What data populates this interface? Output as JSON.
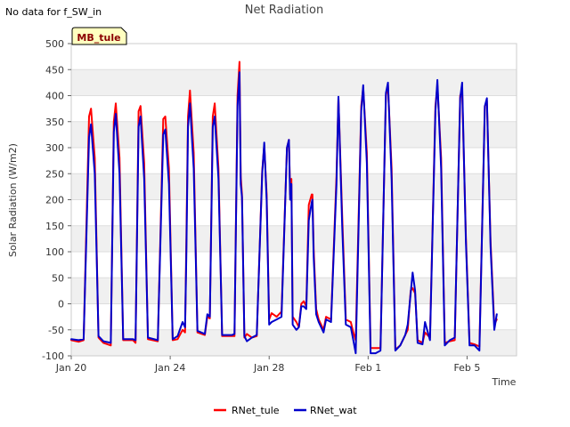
{
  "no_data_text": "No data for f_SW_in",
  "site_badge": "MB_tule",
  "colors": {
    "RNet_tule": "#ff0000",
    "RNet_wat": "#0000cc",
    "band": "#f0f0f0",
    "badge_bg": "#ffffc0"
  },
  "chart_data": {
    "type": "line",
    "title": "Net Radiation",
    "xlabel": "Time",
    "ylabel": "Solar Radiation (W/m2)",
    "ylim": [
      -100,
      500
    ],
    "yticks": [
      -100,
      -50,
      0,
      50,
      100,
      150,
      200,
      250,
      300,
      350,
      400,
      450,
      500
    ],
    "xlim": [
      0,
      18
    ],
    "xticks": [
      {
        "day": 0,
        "label": "Jan 20"
      },
      {
        "day": 4,
        "label": "Jan 24"
      },
      {
        "day": 8,
        "label": "Jan 28"
      },
      {
        "day": 12,
        "label": "Feb 1"
      },
      {
        "day": 16,
        "label": "Feb 5"
      }
    ],
    "series": [
      {
        "name": "RNet_tule",
        "points": [
          [
            0.0,
            -70
          ],
          [
            0.3,
            -73
          ],
          [
            0.5,
            -70
          ],
          [
            0.72,
            360
          ],
          [
            0.8,
            375
          ],
          [
            0.95,
            280
          ],
          [
            1.1,
            -65
          ],
          [
            1.3,
            -75
          ],
          [
            1.6,
            -80
          ],
          [
            1.72,
            350
          ],
          [
            1.8,
            385
          ],
          [
            1.95,
            280
          ],
          [
            2.1,
            -70
          ],
          [
            2.5,
            -70
          ],
          [
            2.6,
            -75
          ],
          [
            2.72,
            370
          ],
          [
            2.8,
            380
          ],
          [
            2.95,
            270
          ],
          [
            3.1,
            -68
          ],
          [
            3.5,
            -72
          ],
          [
            3.72,
            355
          ],
          [
            3.8,
            360
          ],
          [
            3.95,
            260
          ],
          [
            4.1,
            -70
          ],
          [
            4.3,
            -68
          ],
          [
            4.5,
            -50
          ],
          [
            4.6,
            -55
          ],
          [
            4.65,
            115
          ],
          [
            4.72,
            360
          ],
          [
            4.8,
            410
          ],
          [
            4.95,
            290
          ],
          [
            5.1,
            -55
          ],
          [
            5.4,
            -60
          ],
          [
            5.5,
            -25
          ],
          [
            5.6,
            -28
          ],
          [
            5.72,
            360
          ],
          [
            5.8,
            385
          ],
          [
            5.95,
            260
          ],
          [
            6.1,
            -62
          ],
          [
            6.5,
            -62
          ],
          [
            6.6,
            -62
          ],
          [
            6.72,
            400
          ],
          [
            6.8,
            465
          ],
          [
            6.85,
            245
          ],
          [
            6.9,
            210
          ],
          [
            7.0,
            -65
          ],
          [
            7.1,
            -58
          ],
          [
            7.3,
            -65
          ],
          [
            7.5,
            -62
          ],
          [
            7.72,
            255
          ],
          [
            7.8,
            305
          ],
          [
            7.9,
            210
          ],
          [
            8.0,
            -30
          ],
          [
            8.1,
            -18
          ],
          [
            8.3,
            -25
          ],
          [
            8.5,
            -15
          ],
          [
            8.72,
            300
          ],
          [
            8.8,
            315
          ],
          [
            8.85,
            210
          ],
          [
            8.9,
            240
          ],
          [
            8.95,
            -25
          ],
          [
            9.1,
            -35
          ],
          [
            9.2,
            -45
          ],
          [
            9.3,
            0
          ],
          [
            9.4,
            5
          ],
          [
            9.5,
            -5
          ],
          [
            9.6,
            190
          ],
          [
            9.72,
            210
          ],
          [
            9.75,
            210
          ],
          [
            9.8,
            105
          ],
          [
            9.9,
            -10
          ],
          [
            10.0,
            -30
          ],
          [
            10.2,
            -50
          ],
          [
            10.3,
            -25
          ],
          [
            10.5,
            -30
          ],
          [
            10.72,
            245
          ],
          [
            10.8,
            395
          ],
          [
            10.95,
            170
          ],
          [
            11.1,
            -30
          ],
          [
            11.3,
            -35
          ],
          [
            11.4,
            -55
          ],
          [
            11.5,
            -70
          ],
          [
            11.72,
            380
          ],
          [
            11.8,
            415
          ],
          [
            11.95,
            290
          ],
          [
            12.1,
            -85
          ],
          [
            12.3,
            -85
          ],
          [
            12.5,
            -85
          ],
          [
            12.72,
            400
          ],
          [
            12.8,
            420
          ],
          [
            12.95,
            260
          ],
          [
            13.1,
            -88
          ],
          [
            13.3,
            -80
          ],
          [
            13.5,
            -60
          ],
          [
            13.6,
            -50
          ],
          [
            13.72,
            25
          ],
          [
            13.8,
            30
          ],
          [
            13.9,
            20
          ],
          [
            14.0,
            -70
          ],
          [
            14.2,
            -75
          ],
          [
            14.3,
            -55
          ],
          [
            14.5,
            -65
          ],
          [
            14.72,
            380
          ],
          [
            14.8,
            420
          ],
          [
            14.95,
            280
          ],
          [
            15.1,
            -75
          ],
          [
            15.3,
            -72
          ],
          [
            15.5,
            -70
          ],
          [
            15.72,
            400
          ],
          [
            15.8,
            410
          ],
          [
            15.95,
            130
          ],
          [
            16.1,
            -75
          ],
          [
            16.3,
            -78
          ],
          [
            16.5,
            -82
          ],
          [
            16.72,
            380
          ],
          [
            16.8,
            390
          ],
          [
            16.95,
            120
          ],
          [
            17.1,
            -40
          ],
          [
            17.2,
            -30
          ]
        ]
      },
      {
        "name": "RNet_wat",
        "points": [
          [
            0.0,
            -68
          ],
          [
            0.3,
            -70
          ],
          [
            0.5,
            -68
          ],
          [
            0.72,
            320
          ],
          [
            0.8,
            345
          ],
          [
            0.95,
            250
          ],
          [
            1.1,
            -62
          ],
          [
            1.3,
            -72
          ],
          [
            1.6,
            -75
          ],
          [
            1.72,
            330
          ],
          [
            1.8,
            365
          ],
          [
            1.95,
            250
          ],
          [
            2.1,
            -68
          ],
          [
            2.5,
            -68
          ],
          [
            2.6,
            -70
          ],
          [
            2.72,
            340
          ],
          [
            2.8,
            360
          ],
          [
            2.95,
            240
          ],
          [
            3.1,
            -65
          ],
          [
            3.5,
            -70
          ],
          [
            3.72,
            325
          ],
          [
            3.8,
            335
          ],
          [
            3.95,
            230
          ],
          [
            4.1,
            -68
          ],
          [
            4.3,
            -62
          ],
          [
            4.5,
            -35
          ],
          [
            4.6,
            -45
          ],
          [
            4.65,
            90
          ],
          [
            4.72,
            340
          ],
          [
            4.8,
            385
          ],
          [
            4.95,
            260
          ],
          [
            5.1,
            -52
          ],
          [
            5.4,
            -58
          ],
          [
            5.5,
            -20
          ],
          [
            5.6,
            -25
          ],
          [
            5.72,
            340
          ],
          [
            5.8,
            360
          ],
          [
            5.95,
            240
          ],
          [
            6.1,
            -60
          ],
          [
            6.5,
            -60
          ],
          [
            6.6,
            -58
          ],
          [
            6.72,
            380
          ],
          [
            6.8,
            445
          ],
          [
            6.85,
            230
          ],
          [
            6.9,
            205
          ],
          [
            7.0,
            -62
          ],
          [
            7.1,
            -72
          ],
          [
            7.3,
            -65
          ],
          [
            7.5,
            -60
          ],
          [
            7.72,
            250
          ],
          [
            7.8,
            310
          ],
          [
            7.9,
            200
          ],
          [
            8.0,
            -40
          ],
          [
            8.1,
            -35
          ],
          [
            8.3,
            -30
          ],
          [
            8.5,
            -25
          ],
          [
            8.72,
            300
          ],
          [
            8.8,
            315
          ],
          [
            8.85,
            200
          ],
          [
            8.9,
            230
          ],
          [
            8.95,
            -40
          ],
          [
            9.1,
            -50
          ],
          [
            9.2,
            -45
          ],
          [
            9.3,
            -5
          ],
          [
            9.4,
            -5
          ],
          [
            9.5,
            -10
          ],
          [
            9.6,
            160
          ],
          [
            9.72,
            195
          ],
          [
            9.75,
            200
          ],
          [
            9.8,
            90
          ],
          [
            9.9,
            -20
          ],
          [
            10.0,
            -35
          ],
          [
            10.2,
            -55
          ],
          [
            10.3,
            -30
          ],
          [
            10.5,
            -35
          ],
          [
            10.72,
            230
          ],
          [
            10.8,
            398
          ],
          [
            10.95,
            150
          ],
          [
            11.1,
            -40
          ],
          [
            11.3,
            -45
          ],
          [
            11.4,
            -70
          ],
          [
            11.5,
            -95
          ],
          [
            11.72,
            370
          ],
          [
            11.8,
            420
          ],
          [
            11.95,
            270
          ],
          [
            12.1,
            -95
          ],
          [
            12.3,
            -95
          ],
          [
            12.5,
            -90
          ],
          [
            12.72,
            405
          ],
          [
            12.8,
            425
          ],
          [
            12.95,
            240
          ],
          [
            13.1,
            -90
          ],
          [
            13.3,
            -80
          ],
          [
            13.5,
            -60
          ],
          [
            13.6,
            -40
          ],
          [
            13.72,
            20
          ],
          [
            13.8,
            60
          ],
          [
            13.9,
            25
          ],
          [
            14.0,
            -75
          ],
          [
            14.2,
            -78
          ],
          [
            14.3,
            -35
          ],
          [
            14.5,
            -70
          ],
          [
            14.72,
            370
          ],
          [
            14.8,
            430
          ],
          [
            14.95,
            260
          ],
          [
            15.1,
            -80
          ],
          [
            15.3,
            -70
          ],
          [
            15.5,
            -65
          ],
          [
            15.72,
            395
          ],
          [
            15.8,
            425
          ],
          [
            15.95,
            120
          ],
          [
            16.1,
            -80
          ],
          [
            16.3,
            -80
          ],
          [
            16.5,
            -90
          ],
          [
            16.72,
            380
          ],
          [
            16.8,
            395
          ],
          [
            16.95,
            110
          ],
          [
            17.1,
            -50
          ],
          [
            17.2,
            -20
          ]
        ]
      }
    ],
    "legend": [
      {
        "name": "RNet_tule",
        "label": "RNet_tule"
      },
      {
        "name": "RNet_wat",
        "label": "RNet_wat"
      }
    ],
    "legend_position": "bottom-center"
  }
}
